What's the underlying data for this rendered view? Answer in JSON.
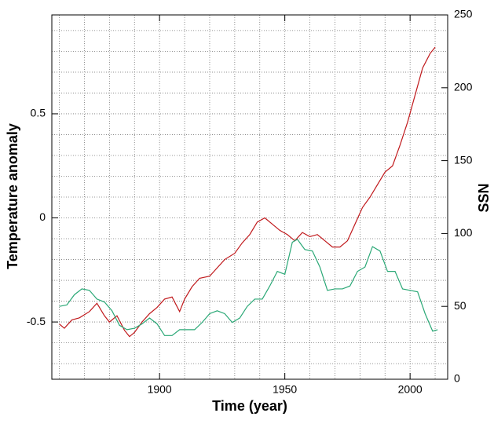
{
  "chart_data": {
    "type": "line",
    "xlabel": "Time (year)",
    "ylabel": "Temperature anomaly",
    "y2label": "SSN",
    "xlim": [
      1857,
      2015
    ],
    "xticks": [
      1900,
      1950,
      2000
    ],
    "ylim": [
      -0.775,
      0.975
    ],
    "yticks": [
      -0.5,
      0,
      0.5
    ],
    "y2lim": [
      0,
      250
    ],
    "y2ticks": [
      0,
      50,
      100,
      150,
      200,
      250
    ],
    "grid": true,
    "x_grid": [
      1860,
      1870,
      1880,
      1890,
      1900,
      1910,
      1920,
      1930,
      1940,
      1950,
      1960,
      1970,
      1980,
      1990,
      2000,
      2010
    ],
    "y_grid": [
      -0.7,
      -0.6,
      -0.5,
      -0.4,
      -0.3,
      -0.2,
      -0.1,
      0,
      0.1,
      0.2,
      0.3,
      0.4,
      0.5,
      0.6,
      0.7,
      0.8,
      0.9
    ],
    "series": [
      {
        "color": "#c0191c",
        "x": [
          1860,
          1862,
          1865,
          1868,
          1872,
          1875,
          1878,
          1880,
          1883,
          1886,
          1888,
          1890,
          1893,
          1896,
          1899,
          1902,
          1905,
          1908,
          1910,
          1913,
          1916,
          1920,
          1923,
          1926,
          1930,
          1933,
          1936,
          1939,
          1942,
          1945,
          1948,
          1951,
          1954,
          1957,
          1960,
          1963,
          1966,
          1969,
          1972,
          1975,
          1978,
          1981,
          1984,
          1987,
          1990,
          1993,
          1996,
          1999,
          2002,
          2005,
          2008,
          2010
        ],
        "values": [
          -0.51,
          -0.53,
          -0.49,
          -0.48,
          -0.45,
          -0.41,
          -0.47,
          -0.5,
          -0.47,
          -0.54,
          -0.57,
          -0.55,
          -0.5,
          -0.46,
          -0.43,
          -0.39,
          -0.38,
          -0.45,
          -0.39,
          -0.33,
          -0.29,
          -0.28,
          -0.24,
          -0.2,
          -0.17,
          -0.12,
          -0.08,
          -0.02,
          0,
          -0.03,
          -0.06,
          -0.08,
          -0.11,
          -0.07,
          -0.09,
          -0.08,
          -0.11,
          -0.14,
          -0.14,
          -0.11,
          -0.03,
          0.05,
          0.1,
          0.16,
          0.22,
          0.25,
          0.35,
          0.46,
          0.59,
          0.72,
          0.79,
          0.82
        ]
      },
      {
        "color": "#2aa876",
        "axis": "y2",
        "x": [
          1860,
          1863,
          1866,
          1869,
          1872,
          1875,
          1878,
          1881,
          1884,
          1887,
          1890,
          1893,
          1896,
          1899,
          1902,
          1905,
          1908,
          1911,
          1914,
          1917,
          1920,
          1923,
          1926,
          1929,
          1932,
          1935,
          1938,
          1941,
          1944,
          1947,
          1950,
          1953,
          1955,
          1958,
          1961,
          1964,
          1967,
          1970,
          1973,
          1976,
          1979,
          1982,
          1985,
          1988,
          1991,
          1994,
          1997,
          2000,
          2003,
          2006,
          2009,
          2011
        ],
        "values": [
          50,
          51,
          58,
          62,
          61,
          55,
          53,
          47,
          37,
          34,
          35,
          38,
          42,
          38,
          30,
          30,
          34,
          34,
          34,
          39,
          45,
          47,
          45,
          39,
          42,
          50,
          55,
          55,
          64,
          74,
          72,
          94,
          96,
          89,
          88,
          77,
          61,
          62,
          62,
          64,
          74,
          77,
          91,
          88,
          74,
          74,
          62,
          61,
          60,
          45,
          33,
          34
        ]
      }
    ]
  }
}
